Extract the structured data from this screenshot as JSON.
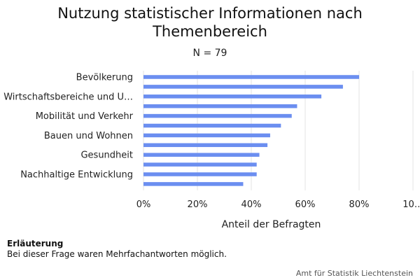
{
  "chart_data": {
    "type": "bar",
    "orientation": "horizontal",
    "title": "Nutzung statistischer Informationen nach Themenbereich",
    "subtitle": "N = 79",
    "xlabel": "Anteil der Befragten",
    "ylabel": "",
    "xlim": [
      0,
      100
    ],
    "x_ticks": [
      "0%",
      "20%",
      "40%",
      "60%",
      "80%",
      "10…"
    ],
    "grid": true,
    "bar_color": "#6b8ef0",
    "categories": [
      "Bevölkerung",
      "",
      "Wirtschaftsbereiche und U…",
      "",
      "Mobilität und Verkehr",
      "",
      "Bauen und Wohnen",
      "",
      "Gesundheit",
      "",
      "Nachhaltige Entwicklung",
      ""
    ],
    "values": [
      80,
      74,
      66,
      57,
      55,
      51,
      47,
      46,
      43,
      42,
      42,
      37
    ]
  },
  "note": {
    "heading": "Erläuterung",
    "text": "Bei dieser Frage waren Mehrfachantworten möglich."
  },
  "source": "Amt für Statistik Liechtenstein"
}
